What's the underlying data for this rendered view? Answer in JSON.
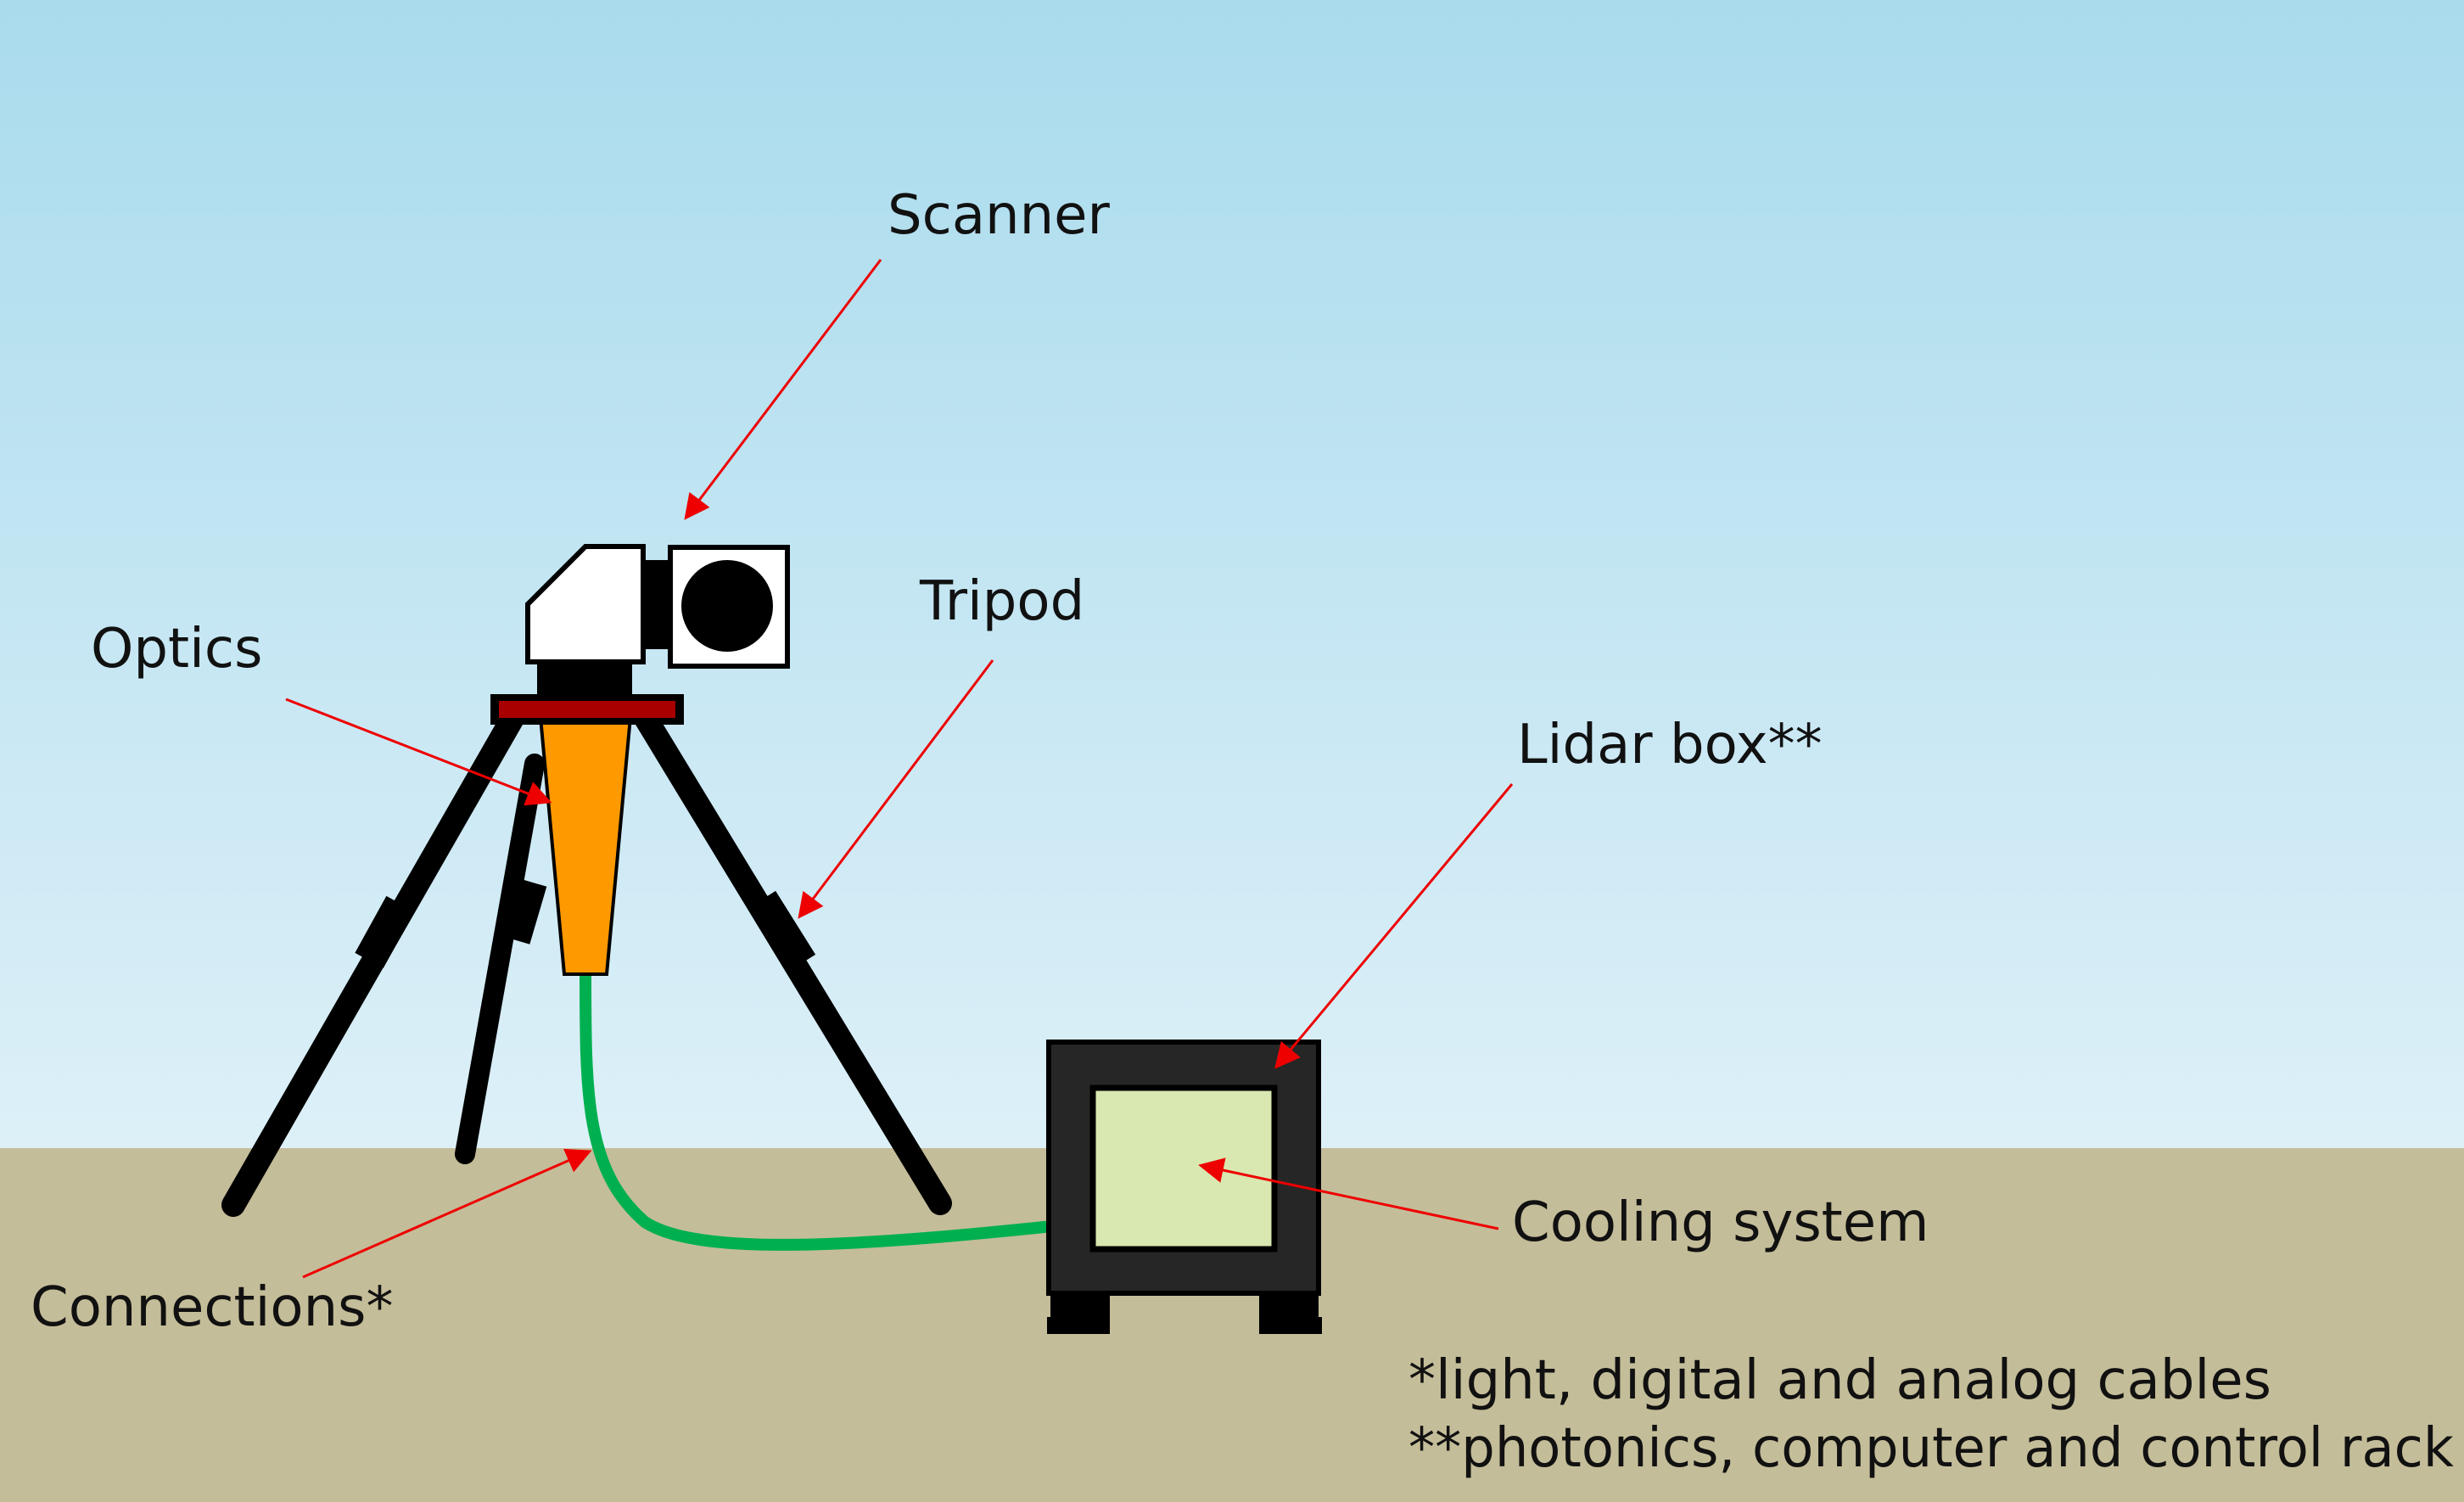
{
  "labels": {
    "scanner": "Scanner",
    "tripod": "Tripod",
    "optics": "Optics",
    "lidar_box": "Lidar box**",
    "cooling_system": "Cooling system",
    "connections": "Connections*"
  },
  "footnotes": {
    "line1": "*light, digital and analog cables",
    "line2": "**photonics, computer and control rack"
  },
  "colors": {
    "sky_top": "#a9dbed",
    "sky_bottom": "#ddf0f8",
    "ground": "#c4bd99",
    "tripod_legs": "#000000",
    "tripod_head": "#a80000",
    "optics": "#ff9900",
    "cable": "#00b050",
    "lidar_box": "#262626",
    "cooling_panel": "#d8e8b0",
    "scanner_body": "#ffffff",
    "arrow": "#ee0000"
  },
  "icons": {
    "scanner": "scanner-icon",
    "lidar_box": "lidar-box-icon"
  }
}
